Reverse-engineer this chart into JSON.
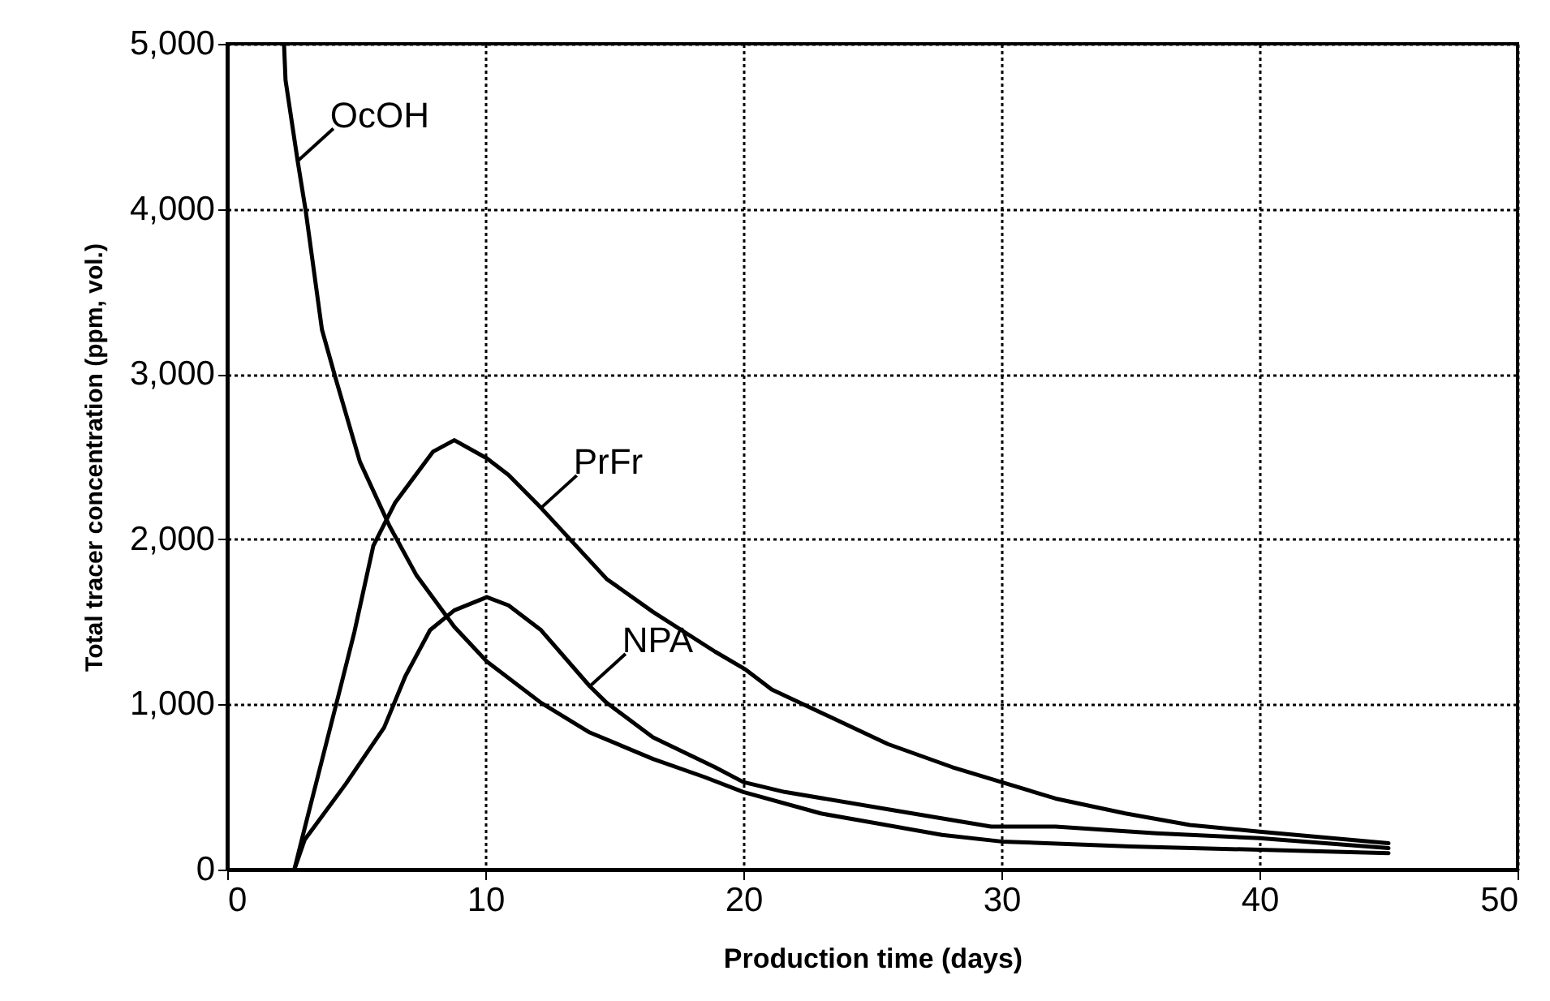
{
  "chart_data": {
    "type": "line",
    "xlabel": "Production time (days)",
    "ylabel": "Total tracer concentration (ppm, vol.)",
    "xlim": [
      0,
      50
    ],
    "xticks": [
      0,
      10,
      20,
      30,
      40,
      50
    ],
    "ylim": [
      0,
      5000
    ],
    "yticks": [
      {
        "value": 0,
        "label": "0"
      },
      {
        "value": 1000,
        "label": "1,000"
      },
      {
        "value": 2000,
        "label": "2,000"
      },
      {
        "value": 3000,
        "label": "3,000"
      },
      {
        "value": 4000,
        "label": "4,000"
      },
      {
        "value": 5000,
        "label": "5,000"
      }
    ],
    "grid": true,
    "line_style": "solid",
    "marker": "none",
    "annotations": [
      {
        "text": "OcOH",
        "x": 2.73,
        "y": 4290
      },
      {
        "text": "PrFr",
        "x": 12.16,
        "y": 2190
      },
      {
        "text": "NPA",
        "x": 14.05,
        "y": 1110
      }
    ],
    "series": [
      {
        "color": "#000000",
        "x": [
          2.2,
          2.26,
          2.73,
          3.04,
          3.67,
          4.19,
          5.14,
          6.29,
          7.34,
          8.8,
          10.06,
          12.16,
          14.05,
          16.5,
          18.5,
          20,
          23,
          27.7,
          30,
          35,
          40,
          45
        ],
        "values": [
          5000,
          4780,
          4290,
          3990,
          3270,
          2980,
          2470,
          2080,
          1780,
          1470,
          1260,
          1010,
          830,
          670,
          560,
          470,
          340,
          210,
          170,
          140,
          120,
          100
        ]
      },
      {
        "color": "#000000",
        "x": [
          2.6,
          3.0,
          4.4,
          4.93,
          5.66,
          6.5,
          7.97,
          8.8,
          10.06,
          10.9,
          12.16,
          14.7,
          16.5,
          18.9,
          20.1,
          21.1,
          25.6,
          28.1,
          30,
          32.1,
          34.8,
          37.3,
          40,
          45
        ],
        "values": [
          0,
          250,
          1110,
          1440,
          1960,
          2220,
          2530,
          2600,
          2490,
          2390,
          2190,
          1760,
          1560,
          1320,
          1210,
          1090,
          760,
          620,
          530,
          430,
          340,
          270,
          230,
          160
        ]
      },
      {
        "color": "#000000",
        "x": [
          2.6,
          3.0,
          4.6,
          6.08,
          6.9,
          7.86,
          8.8,
          10.06,
          10.9,
          12.16,
          14.05,
          14.7,
          16.5,
          18.9,
          20,
          21.6,
          25.8,
          29.6,
          32.1,
          36,
          40,
          45
        ],
        "values": [
          0,
          180,
          520,
          860,
          1170,
          1450,
          1570,
          1650,
          1600,
          1450,
          1110,
          1010,
          800,
          620,
          530,
          470,
          360,
          260,
          260,
          220,
          190,
          130
        ]
      }
    ]
  }
}
